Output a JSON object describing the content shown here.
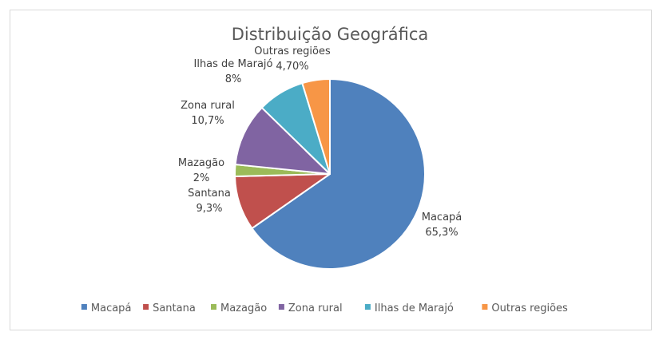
{
  "chart_data": {
    "type": "pie",
    "title": "Distribuição Geográfica",
    "legend_position": "bottom",
    "slices": [
      {
        "name": "Macapá",
        "value": 65.3,
        "label_value": "65,3%",
        "color": "#4f81bd"
      },
      {
        "name": "Santana",
        "value": 9.3,
        "label_value": "9,3%",
        "color": "#c0504d"
      },
      {
        "name": "Mazagão",
        "value": 2,
        "label_value": "2%",
        "color": "#9bbb59"
      },
      {
        "name": "Zona rural",
        "value": 10.7,
        "label_value": "10,7%",
        "color": "#8064a2"
      },
      {
        "name": "Ilhas de Marajó",
        "value": 8,
        "label_value": "8%",
        "color": "#4bacc6"
      },
      {
        "name": "Outras regiões",
        "value": 4.7,
        "label_value": "4,70%",
        "color": "#f79646"
      }
    ]
  }
}
